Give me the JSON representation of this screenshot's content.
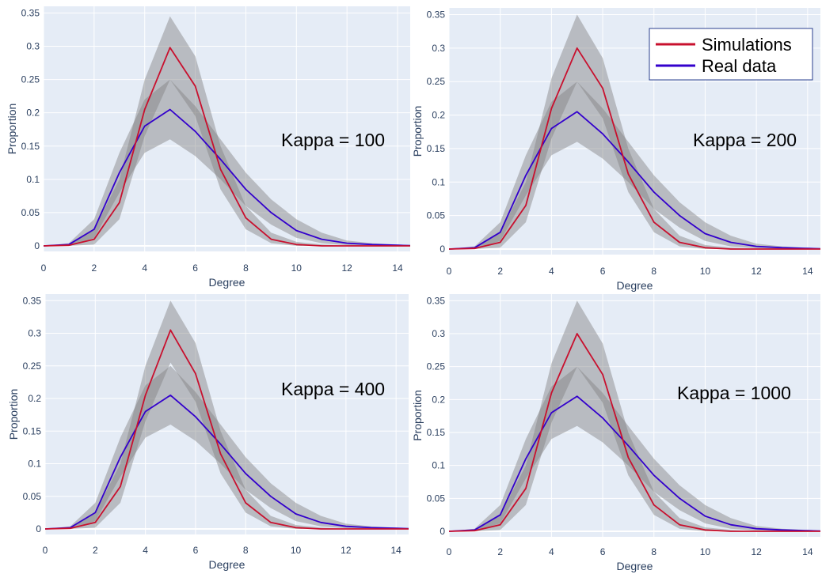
{
  "chart_data": [
    {
      "type": "line",
      "annotation": "Kappa = 100",
      "xlabel": "Degree",
      "ylabel": "Proportion",
      "xlim": [
        0,
        14.5
      ],
      "ylim": [
        -0.01,
        0.36
      ],
      "xticks": [
        "0",
        "2",
        "4",
        "6",
        "8",
        "10",
        "12",
        "14"
      ],
      "yticks": [
        "0",
        "0.05",
        "0.1",
        "0.15",
        "0.2",
        "0.25",
        "0.3",
        "0.35"
      ],
      "x": [
        0,
        1,
        2,
        3,
        4,
        5,
        6,
        7,
        8,
        9,
        10,
        11,
        12,
        13,
        14,
        15
      ],
      "series": [
        {
          "name": "Simulations",
          "color": "#c8102e",
          "values": [
            0,
            0.001,
            0.01,
            0.065,
            0.205,
            0.298,
            0.24,
            0.115,
            0.042,
            0.01,
            0.002,
            0,
            0,
            0,
            0,
            0
          ],
          "upper": [
            0,
            0.003,
            0.025,
            0.1,
            0.25,
            0.345,
            0.285,
            0.15,
            0.06,
            0.02,
            0.006,
            0.002,
            0,
            0,
            0,
            0
          ],
          "lower": [
            0,
            0,
            0.002,
            0.04,
            0.165,
            0.25,
            0.195,
            0.085,
            0.025,
            0.004,
            0,
            0,
            0,
            0,
            0,
            0
          ]
        },
        {
          "name": "Real data",
          "color": "#3300cc",
          "values": [
            0,
            0.002,
            0.025,
            0.11,
            0.18,
            0.205,
            0.172,
            0.13,
            0.085,
            0.05,
            0.023,
            0.01,
            0.004,
            0.002,
            0.001,
            0
          ],
          "upper": [
            0,
            0.004,
            0.04,
            0.14,
            0.22,
            0.25,
            0.21,
            0.16,
            0.11,
            0.07,
            0.04,
            0.02,
            0.008,
            0.004,
            0.002,
            0.001
          ],
          "lower": [
            0,
            0,
            0.012,
            0.08,
            0.14,
            0.16,
            0.135,
            0.1,
            0.06,
            0.032,
            0.012,
            0.004,
            0.001,
            0,
            0,
            0
          ]
        }
      ],
      "legend": null
    },
    {
      "type": "line",
      "annotation": "Kappa = 200",
      "xlabel": "Degree",
      "ylabel": "Proportion",
      "xlim": [
        0,
        14.5
      ],
      "ylim": [
        -0.01,
        0.36
      ],
      "xticks": [
        "0",
        "2",
        "4",
        "6",
        "8",
        "10",
        "12",
        "14"
      ],
      "yticks": [
        "0",
        "0.05",
        "0.1",
        "0.15",
        "0.2",
        "0.25",
        "0.3",
        "0.35"
      ],
      "x": [
        0,
        1,
        2,
        3,
        4,
        5,
        6,
        7,
        8,
        9,
        10,
        11,
        12,
        13,
        14,
        15
      ],
      "series": [
        {
          "name": "Simulations",
          "color": "#c8102e",
          "values": [
            0,
            0.001,
            0.01,
            0.065,
            0.21,
            0.3,
            0.24,
            0.112,
            0.04,
            0.01,
            0.002,
            0,
            0,
            0,
            0,
            0
          ],
          "upper": [
            0,
            0.003,
            0.025,
            0.1,
            0.255,
            0.35,
            0.285,
            0.15,
            0.06,
            0.02,
            0.006,
            0.002,
            0,
            0,
            0,
            0
          ],
          "lower": [
            0,
            0,
            0.002,
            0.04,
            0.165,
            0.25,
            0.195,
            0.085,
            0.025,
            0.004,
            0,
            0,
            0,
            0,
            0,
            0
          ]
        },
        {
          "name": "Real data",
          "color": "#3300cc",
          "values": [
            0,
            0.002,
            0.025,
            0.11,
            0.18,
            0.205,
            0.172,
            0.13,
            0.085,
            0.05,
            0.023,
            0.01,
            0.004,
            0.002,
            0.001,
            0
          ],
          "upper": [
            0,
            0.004,
            0.04,
            0.14,
            0.22,
            0.25,
            0.21,
            0.16,
            0.11,
            0.07,
            0.04,
            0.02,
            0.008,
            0.004,
            0.002,
            0.001
          ],
          "lower": [
            0,
            0,
            0.012,
            0.08,
            0.14,
            0.16,
            0.135,
            0.1,
            0.06,
            0.032,
            0.012,
            0.004,
            0.001,
            0,
            0,
            0
          ]
        }
      ],
      "legend": {
        "placement": "top-right",
        "entries": [
          "Simulations",
          "Real data"
        ]
      }
    },
    {
      "type": "line",
      "annotation": "Kappa = 400",
      "xlabel": "Degree",
      "ylabel": "Proportion",
      "xlim": [
        0,
        14.5
      ],
      "ylim": [
        -0.01,
        0.36
      ],
      "xticks": [
        "0",
        "2",
        "4",
        "6",
        "8",
        "10",
        "12",
        "14"
      ],
      "yticks": [
        "0",
        "0.05",
        "0.1",
        "0.15",
        "0.2",
        "0.25",
        "0.3",
        "0.35"
      ],
      "x": [
        0,
        1,
        2,
        3,
        4,
        5,
        6,
        7,
        8,
        9,
        10,
        11,
        12,
        13,
        14,
        15
      ],
      "series": [
        {
          "name": "Simulations",
          "color": "#c8102e",
          "values": [
            0,
            0.001,
            0.01,
            0.065,
            0.205,
            0.305,
            0.238,
            0.115,
            0.04,
            0.01,
            0.002,
            0,
            0,
            0,
            0,
            0
          ],
          "upper": [
            0,
            0.003,
            0.025,
            0.1,
            0.25,
            0.35,
            0.285,
            0.15,
            0.06,
            0.02,
            0.006,
            0.002,
            0,
            0,
            0,
            0
          ],
          "lower": [
            0,
            0,
            0.002,
            0.04,
            0.165,
            0.255,
            0.195,
            0.085,
            0.025,
            0.004,
            0,
            0,
            0,
            0,
            0,
            0
          ]
        },
        {
          "name": "Real data",
          "color": "#3300cc",
          "values": [
            0,
            0.002,
            0.025,
            0.11,
            0.18,
            0.205,
            0.172,
            0.13,
            0.085,
            0.05,
            0.023,
            0.01,
            0.004,
            0.002,
            0.001,
            0
          ],
          "upper": [
            0,
            0.004,
            0.04,
            0.14,
            0.22,
            0.25,
            0.21,
            0.16,
            0.11,
            0.07,
            0.04,
            0.02,
            0.008,
            0.004,
            0.002,
            0.001
          ],
          "lower": [
            0,
            0,
            0.012,
            0.08,
            0.14,
            0.16,
            0.135,
            0.1,
            0.06,
            0.032,
            0.012,
            0.004,
            0.001,
            0,
            0,
            0
          ]
        }
      ],
      "legend": null
    },
    {
      "type": "line",
      "annotation": "Kappa = 1000",
      "xlabel": "Degree",
      "ylabel": "Proportion",
      "xlim": [
        0,
        14.5
      ],
      "ylim": [
        -0.01,
        0.36
      ],
      "xticks": [
        "0",
        "2",
        "4",
        "6",
        "8",
        "10",
        "12",
        "14"
      ],
      "yticks": [
        "0",
        "0.05",
        "0.1",
        "0.15",
        "0.2",
        "0.25",
        "0.3",
        "0.35"
      ],
      "x": [
        0,
        1,
        2,
        3,
        4,
        5,
        6,
        7,
        8,
        9,
        10,
        11,
        12,
        13,
        14,
        15
      ],
      "series": [
        {
          "name": "Simulations",
          "color": "#c8102e",
          "values": [
            0,
            0.001,
            0.01,
            0.065,
            0.21,
            0.3,
            0.238,
            0.112,
            0.04,
            0.01,
            0.002,
            0,
            0,
            0,
            0,
            0
          ],
          "upper": [
            0,
            0.003,
            0.025,
            0.1,
            0.255,
            0.35,
            0.285,
            0.15,
            0.06,
            0.02,
            0.006,
            0.002,
            0,
            0,
            0,
            0
          ],
          "lower": [
            0,
            0,
            0.002,
            0.04,
            0.165,
            0.25,
            0.195,
            0.085,
            0.025,
            0.004,
            0,
            0,
            0,
            0,
            0,
            0
          ]
        },
        {
          "name": "Real data",
          "color": "#3300cc",
          "values": [
            0,
            0.002,
            0.025,
            0.11,
            0.18,
            0.205,
            0.172,
            0.13,
            0.085,
            0.05,
            0.023,
            0.01,
            0.004,
            0.002,
            0.001,
            0
          ],
          "upper": [
            0,
            0.004,
            0.04,
            0.14,
            0.22,
            0.25,
            0.21,
            0.16,
            0.11,
            0.07,
            0.04,
            0.02,
            0.008,
            0.004,
            0.002,
            0.001
          ],
          "lower": [
            0,
            0,
            0.012,
            0.08,
            0.14,
            0.16,
            0.135,
            0.1,
            0.06,
            0.032,
            0.012,
            0.004,
            0.001,
            0,
            0,
            0
          ]
        }
      ],
      "legend": null
    }
  ],
  "colors": {
    "plot_bg": "#e5ecf6",
    "grid": "#ffffff",
    "band": "#808080",
    "tick_text": "#2a3f5f"
  }
}
